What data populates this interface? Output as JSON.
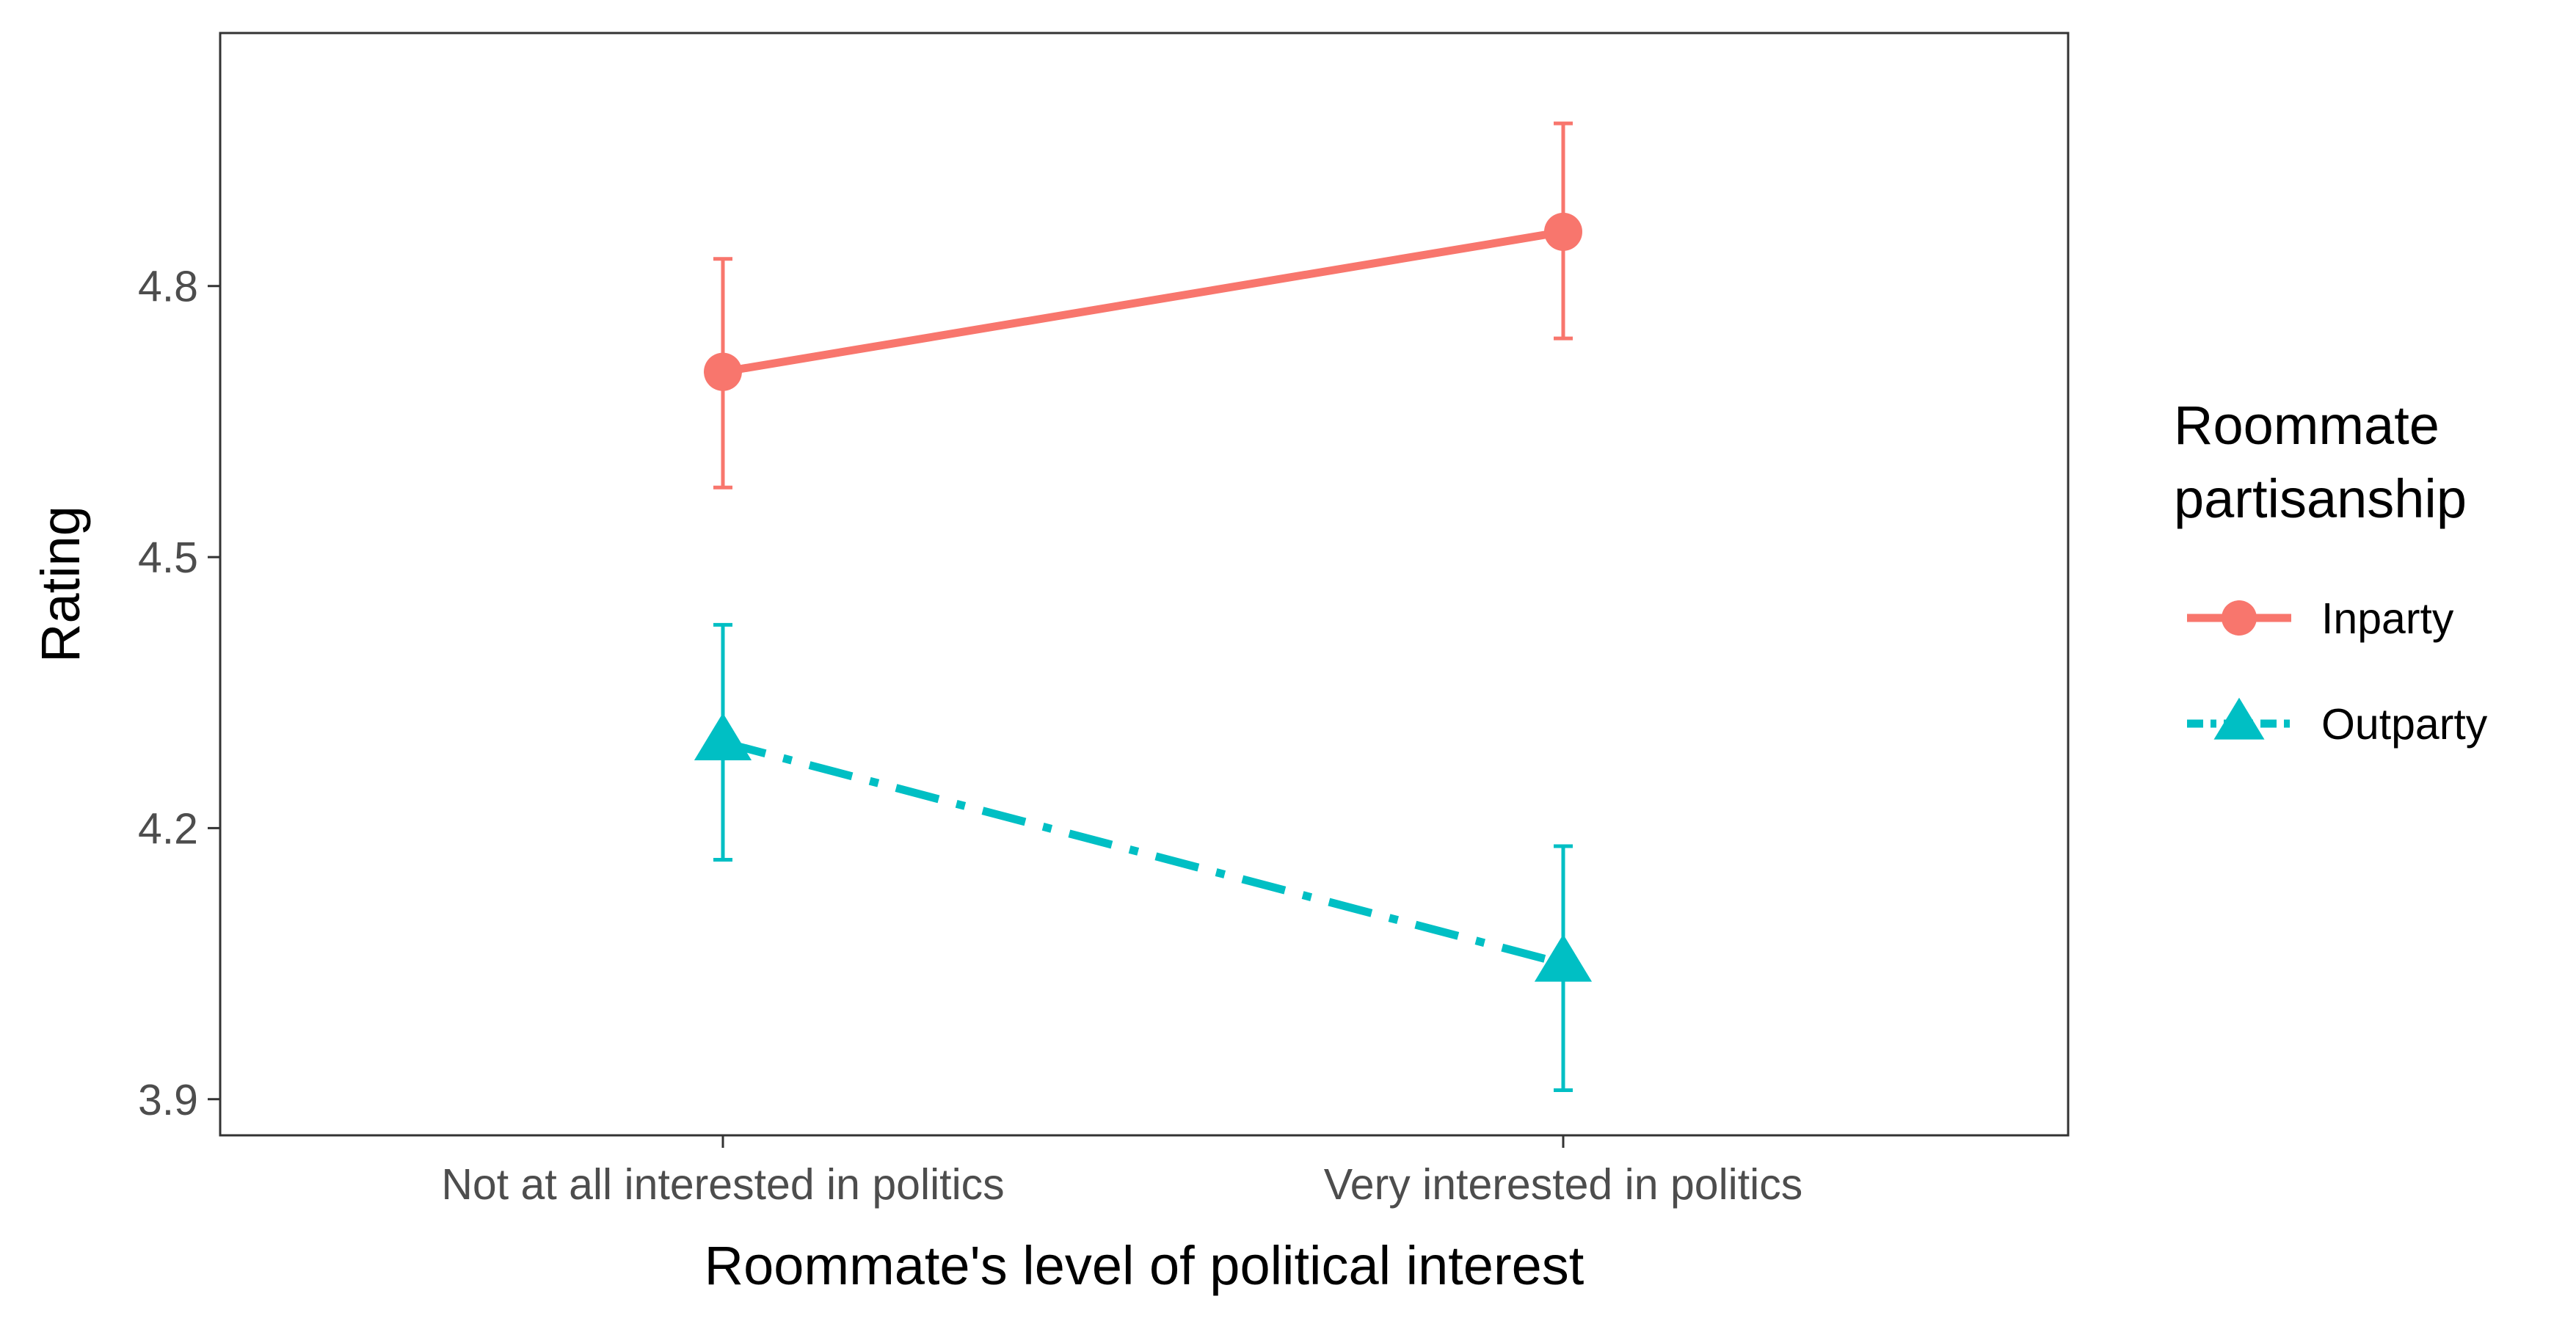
{
  "chart_data": {
    "type": "line",
    "xlabel": "Roommate's level of political interest",
    "ylabel": "Rating",
    "categories": [
      "Not at all interested in politics",
      "Very interested in politics"
    ],
    "ylim": [
      3.86,
      5.08
    ],
    "yticks": [
      3.9,
      4.2,
      4.5,
      4.8
    ],
    "ytick_labels": [
      "3.9",
      "4.2",
      "4.5",
      "4.8"
    ],
    "grid": false,
    "legend": {
      "title_lines": [
        "Roommate",
        "partisanship"
      ],
      "placement": "right"
    },
    "series": [
      {
        "name": "Inparty",
        "color": "#F8766D",
        "marker": "circle",
        "linestyle": "solid",
        "values": [
          4.705,
          4.86
        ],
        "error_low": [
          4.577,
          4.742
        ],
        "error_high": [
          4.83,
          4.98
        ]
      },
      {
        "name": "Outparty",
        "color": "#00BFC4",
        "marker": "triangle",
        "linestyle": "dashdot",
        "values": [
          4.295,
          4.05
        ],
        "error_low": [
          4.165,
          3.91
        ],
        "error_high": [
          4.425,
          4.18
        ]
      }
    ]
  }
}
